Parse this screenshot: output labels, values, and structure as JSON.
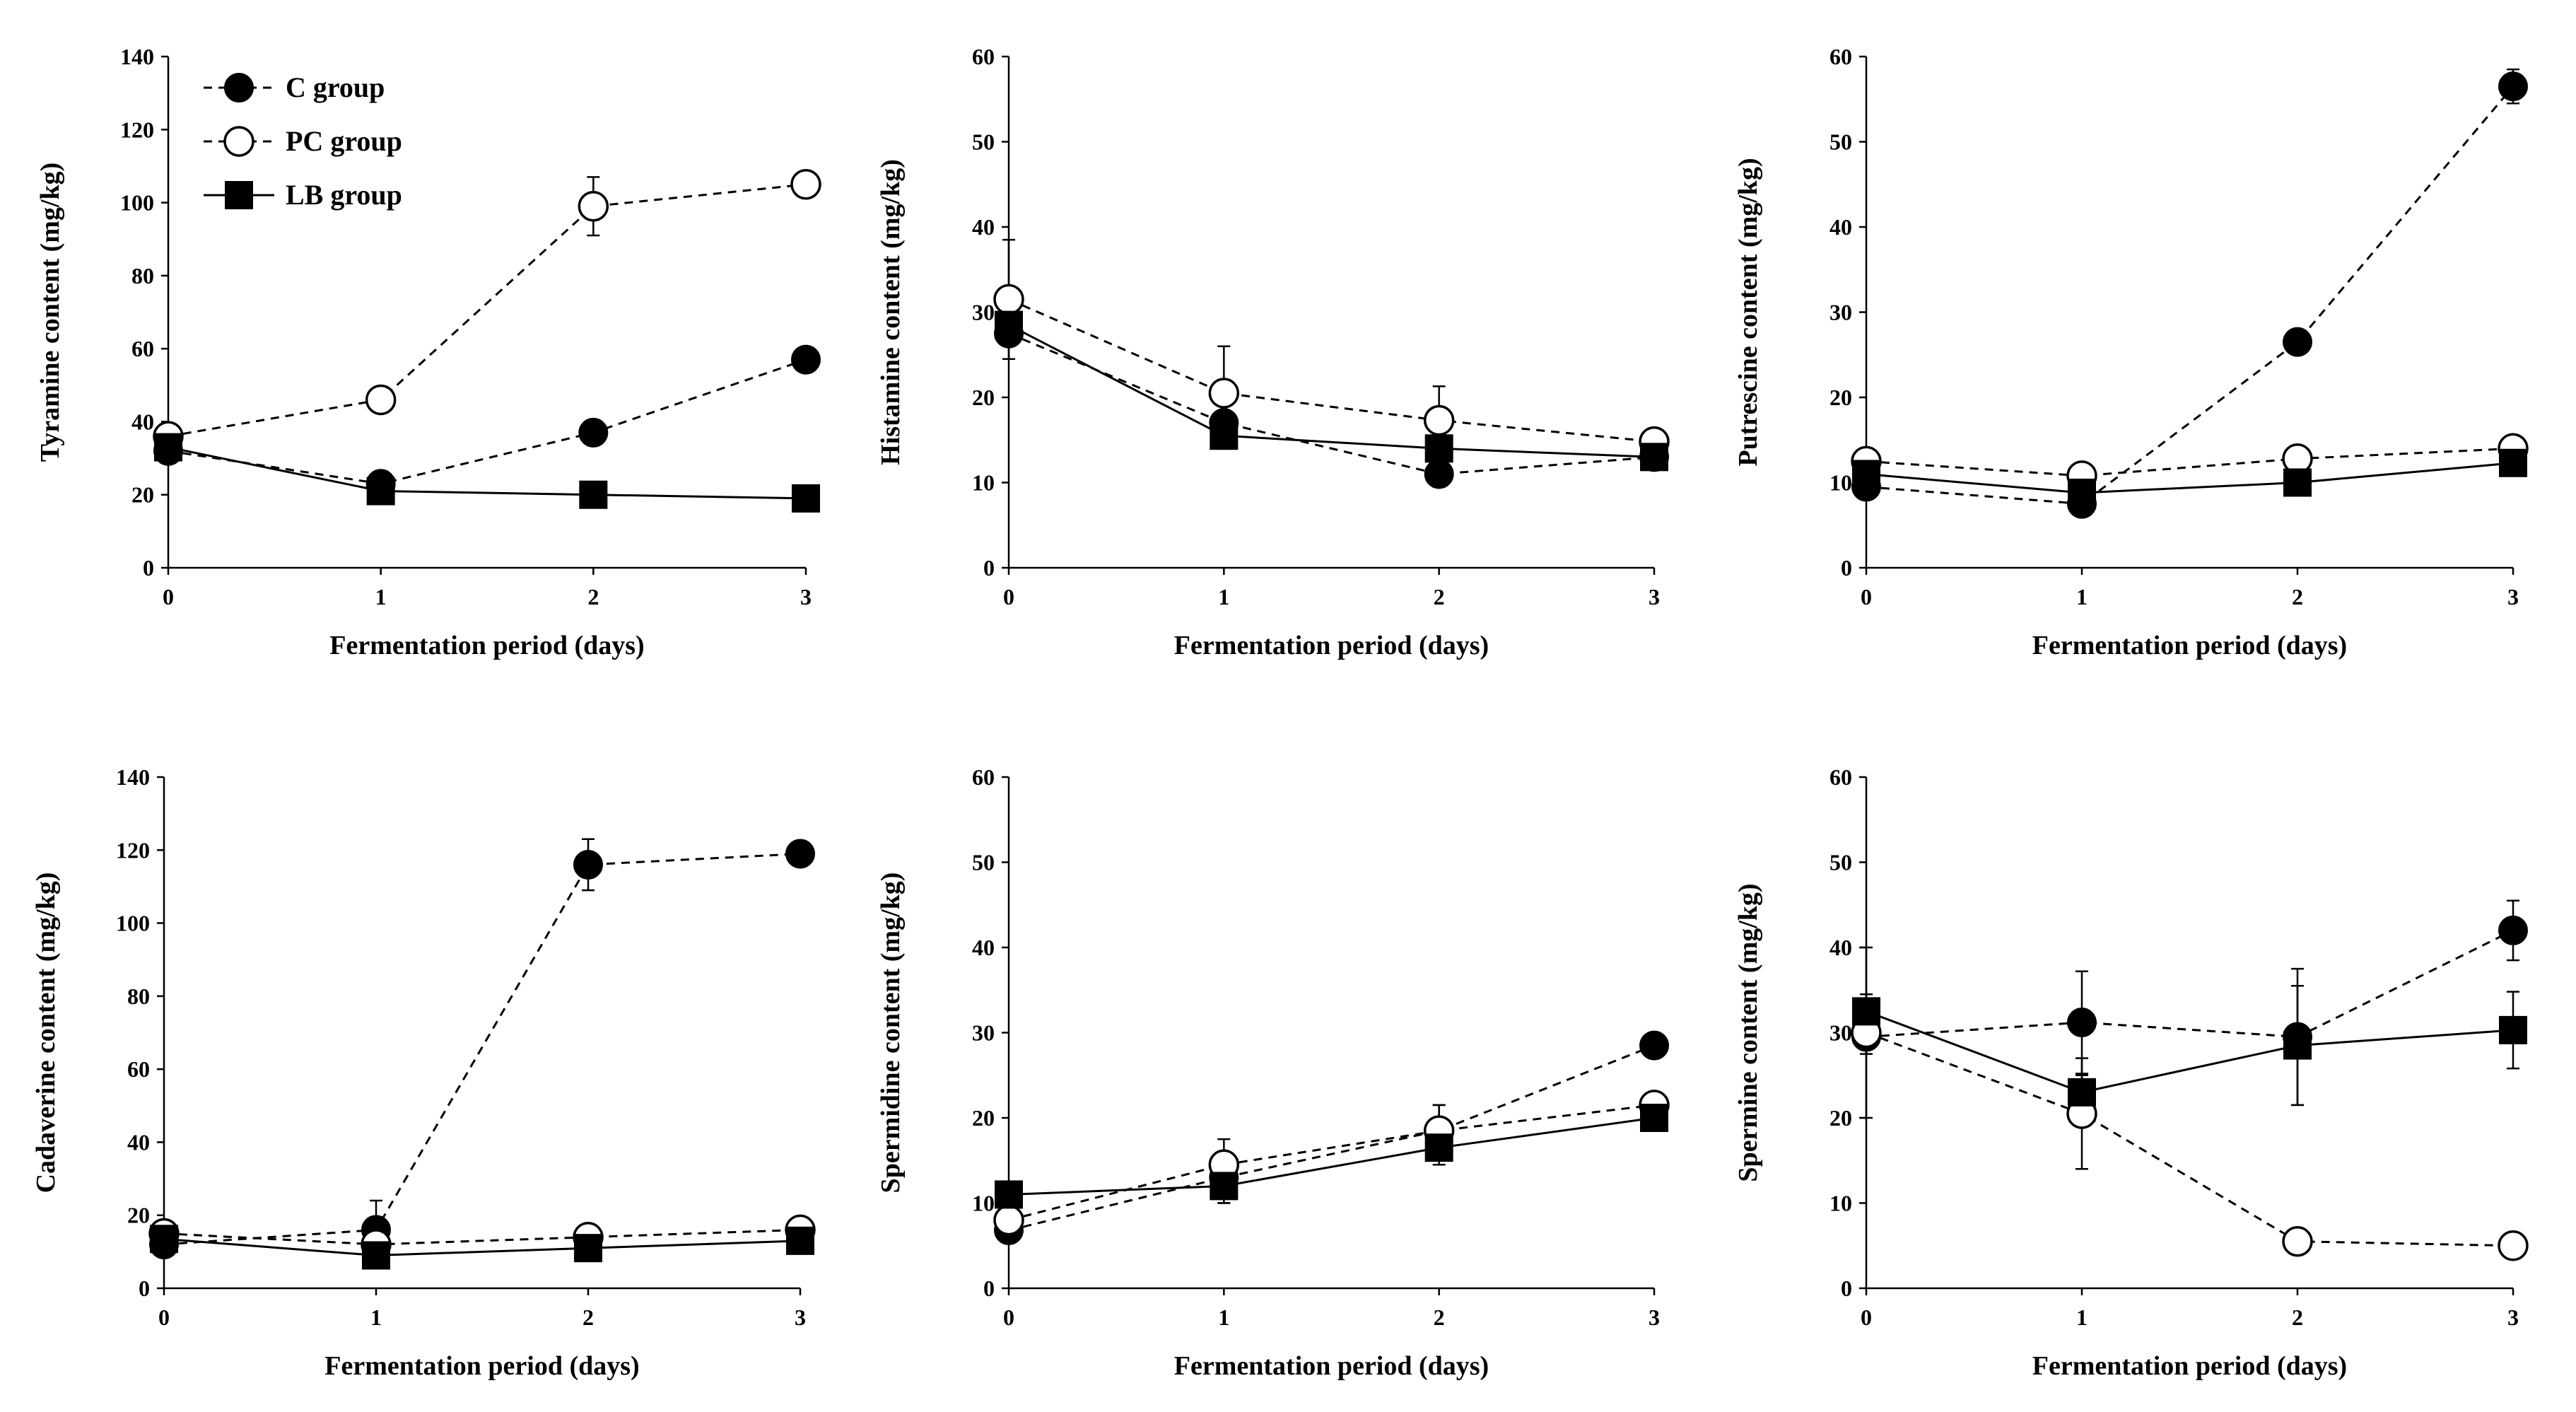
{
  "chart_data": [
    {
      "type": "line",
      "xlabel": "Fermentation period (days)",
      "ylabel": "Tyramine content (mg/kg)",
      "x": [
        0,
        1,
        2,
        3
      ],
      "ylim": [
        0,
        140
      ],
      "yticks": [
        0,
        20,
        40,
        60,
        80,
        100,
        120,
        140
      ],
      "legend": "top-left",
      "grid": false,
      "series": [
        {
          "name": "C group",
          "values": [
            32,
            23,
            37,
            57
          ],
          "errors": [
            3,
            2,
            2,
            2
          ],
          "style": "dashed",
          "marker": "filled-circle"
        },
        {
          "name": "PC group",
          "values": [
            36,
            46,
            99,
            105
          ],
          "errors": [
            3,
            2,
            8,
            2
          ],
          "style": "dashed",
          "marker": "open-circle"
        },
        {
          "name": "LB group",
          "values": [
            33,
            21,
            20,
            19
          ],
          "errors": [
            2,
            2,
            2,
            1
          ],
          "style": "solid",
          "marker": "filled-square"
        }
      ]
    },
    {
      "type": "line",
      "xlabel": "Fermentation period (days)",
      "ylabel": "Histamine content (mg/kg)",
      "x": [
        0,
        1,
        2,
        3
      ],
      "ylim": [
        0,
        60
      ],
      "yticks": [
        0,
        10,
        20,
        30,
        40,
        50,
        60
      ],
      "grid": false,
      "series": [
        {
          "name": "C group",
          "values": [
            27.5,
            17,
            11,
            13
          ],
          "errors": [
            1.5,
            1,
            1.5,
            1
          ],
          "style": "dashed",
          "marker": "filled-circle"
        },
        {
          "name": "PC group",
          "values": [
            31.5,
            20.5,
            17.3,
            14.8
          ],
          "errors": [
            7,
            5.5,
            4,
            1
          ],
          "style": "dashed",
          "marker": "open-circle"
        },
        {
          "name": "LB group",
          "values": [
            28.5,
            15.5,
            14,
            13
          ],
          "errors": [
            1,
            1,
            1,
            1
          ],
          "style": "solid",
          "marker": "filled-square"
        }
      ]
    },
    {
      "type": "line",
      "xlabel": "Fermentation period (days)",
      "ylabel": "Putrescine content (mg/kg)",
      "x": [
        0,
        1,
        2,
        3
      ],
      "ylim": [
        0,
        60
      ],
      "yticks": [
        0,
        10,
        20,
        30,
        40,
        50,
        60
      ],
      "grid": false,
      "series": [
        {
          "name": "C group",
          "values": [
            9.5,
            7.5,
            26.5,
            56.5
          ],
          "errors": [
            0.8,
            0.5,
            1,
            2
          ],
          "style": "dashed",
          "marker": "filled-circle"
        },
        {
          "name": "PC group",
          "values": [
            12.5,
            10.8,
            12.8,
            14
          ],
          "errors": [
            0.8,
            0.8,
            0.8,
            0.8
          ],
          "style": "dashed",
          "marker": "open-circle"
        },
        {
          "name": "LB group",
          "values": [
            11,
            8.8,
            10,
            12.3
          ],
          "errors": [
            0.5,
            0.5,
            0.5,
            0.5
          ],
          "style": "solid",
          "marker": "filled-square"
        }
      ]
    },
    {
      "type": "line",
      "xlabel": "Fermentation period (days)",
      "ylabel": "Cadaverine content (mg/kg)",
      "x": [
        0,
        1,
        2,
        3
      ],
      "ylim": [
        0,
        140
      ],
      "yticks": [
        0,
        20,
        40,
        60,
        80,
        100,
        120,
        140
      ],
      "grid": false,
      "series": [
        {
          "name": "C group",
          "values": [
            12,
            16,
            116,
            119
          ],
          "errors": [
            2,
            8,
            7,
            3
          ],
          "style": "dashed",
          "marker": "filled-circle"
        },
        {
          "name": "PC group",
          "values": [
            15,
            12,
            14,
            16
          ],
          "errors": [
            2,
            2,
            2,
            2
          ],
          "style": "dashed",
          "marker": "open-circle"
        },
        {
          "name": "LB group",
          "values": [
            13.5,
            9,
            11,
            13
          ],
          "errors": [
            1,
            1,
            1,
            1
          ],
          "style": "solid",
          "marker": "filled-square"
        }
      ]
    },
    {
      "type": "line",
      "xlabel": "Fermentation period (days)",
      "ylabel": "Spermidine content (mg/kg)",
      "x": [
        0,
        1,
        2,
        3
      ],
      "ylim": [
        0,
        60
      ],
      "yticks": [
        0,
        10,
        20,
        30,
        40,
        50,
        60
      ],
      "grid": false,
      "series": [
        {
          "name": "C group",
          "values": [
            6.8,
            13,
            18.5,
            28.5
          ],
          "errors": [
            1,
            3,
            3,
            1.5
          ],
          "style": "dashed",
          "marker": "filled-circle"
        },
        {
          "name": "PC group",
          "values": [
            8,
            14.5,
            18.5,
            21.5
          ],
          "errors": [
            1,
            3,
            3,
            1
          ],
          "style": "dashed",
          "marker": "open-circle"
        },
        {
          "name": "LB group",
          "values": [
            11,
            12,
            16.5,
            20
          ],
          "errors": [
            1,
            2,
            2,
            1
          ],
          "style": "solid",
          "marker": "filled-square"
        }
      ]
    },
    {
      "type": "line",
      "xlabel": "Fermentation period (days)",
      "ylabel": "Spermine content (mg/kg)",
      "x": [
        0,
        1,
        2,
        3
      ],
      "ylim": [
        0,
        60
      ],
      "yticks": [
        0,
        10,
        20,
        30,
        40,
        50,
        60
      ],
      "grid": false,
      "series": [
        {
          "name": "C group",
          "values": [
            29.5,
            31.2,
            29.5,
            42
          ],
          "errors": [
            2,
            6,
            8,
            3.5
          ],
          "style": "dashed",
          "marker": "filled-circle"
        },
        {
          "name": "PC group",
          "values": [
            30,
            20.5,
            5.5,
            5
          ],
          "errors": [
            10,
            6.5,
            1,
            1
          ],
          "style": "dashed",
          "marker": "open-circle"
        },
        {
          "name": "LB group",
          "values": [
            32.5,
            23,
            28.5,
            30.3
          ],
          "errors": [
            2,
            2,
            7,
            4.5
          ],
          "style": "solid",
          "marker": "filled-square"
        }
      ]
    }
  ]
}
